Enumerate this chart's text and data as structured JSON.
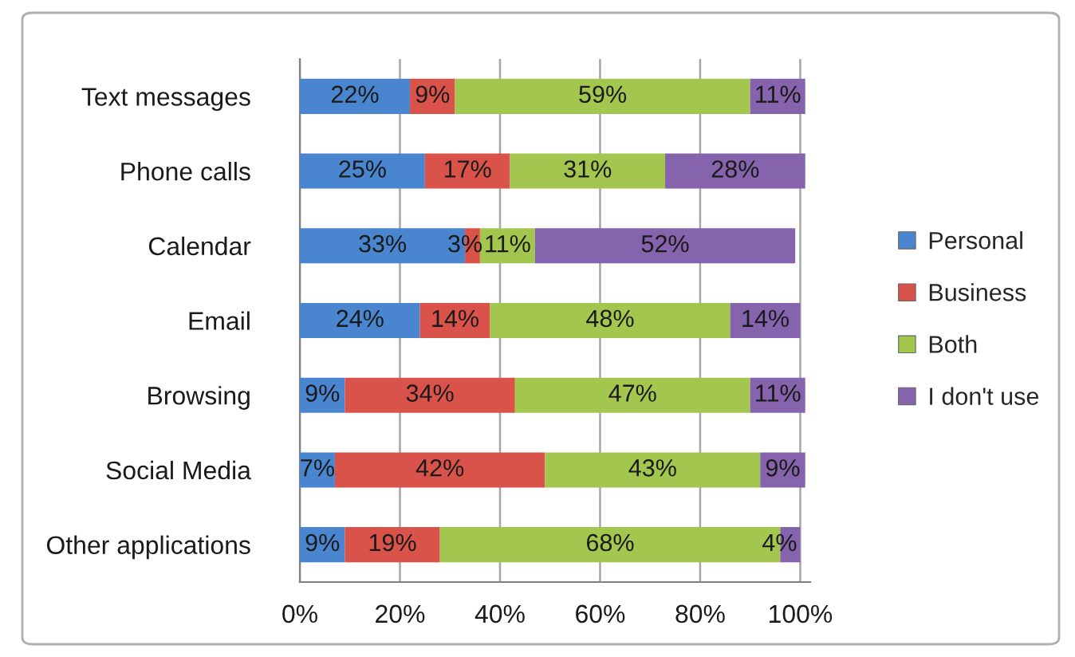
{
  "chart_data": {
    "type": "bar",
    "orientation": "horizontal",
    "stacked": true,
    "categories": [
      "Text messages",
      "Phone calls",
      "Calendar",
      "Email",
      "Browsing",
      "Social Media",
      "Other applications"
    ],
    "series": [
      {
        "name": "Personal",
        "color": "#4a86cf",
        "values": [
          22,
          25,
          33,
          24,
          9,
          7,
          9
        ],
        "value_labels": [
          "22%",
          "25%",
          "33%",
          "24%",
          "9%",
          "7%",
          "9%"
        ]
      },
      {
        "name": "Business",
        "color": "#d9534a",
        "values": [
          9,
          17,
          3,
          14,
          34,
          42,
          19
        ],
        "value_labels": [
          "9%",
          "17%",
          "3%",
          "14%",
          "34%",
          "42%",
          "19%"
        ]
      },
      {
        "name": "Both",
        "color": "#a3c64f",
        "values": [
          59,
          31,
          11,
          48,
          47,
          43,
          68
        ],
        "value_labels": [
          "59%",
          "31%",
          "11%",
          "48%",
          "47%",
          "43%",
          "68%"
        ]
      },
      {
        "name": "I don't use",
        "color": "#8563ad",
        "values": [
          11,
          28,
          52,
          14,
          11,
          9,
          4
        ],
        "value_labels": [
          "11%",
          "28%",
          "52%",
          "14%",
          "11%",
          "9%",
          "4%"
        ]
      }
    ],
    "xlim": [
      0,
      102
    ],
    "xticks": [
      {
        "value": 0,
        "label": "0%"
      },
      {
        "value": 20,
        "label": "20%"
      },
      {
        "value": 40,
        "label": "40%"
      },
      {
        "value": 60,
        "label": "60%"
      },
      {
        "value": 80,
        "label": "80%"
      },
      {
        "value": 100,
        "label": "100%"
      }
    ],
    "grid": "x",
    "legend": "right"
  }
}
